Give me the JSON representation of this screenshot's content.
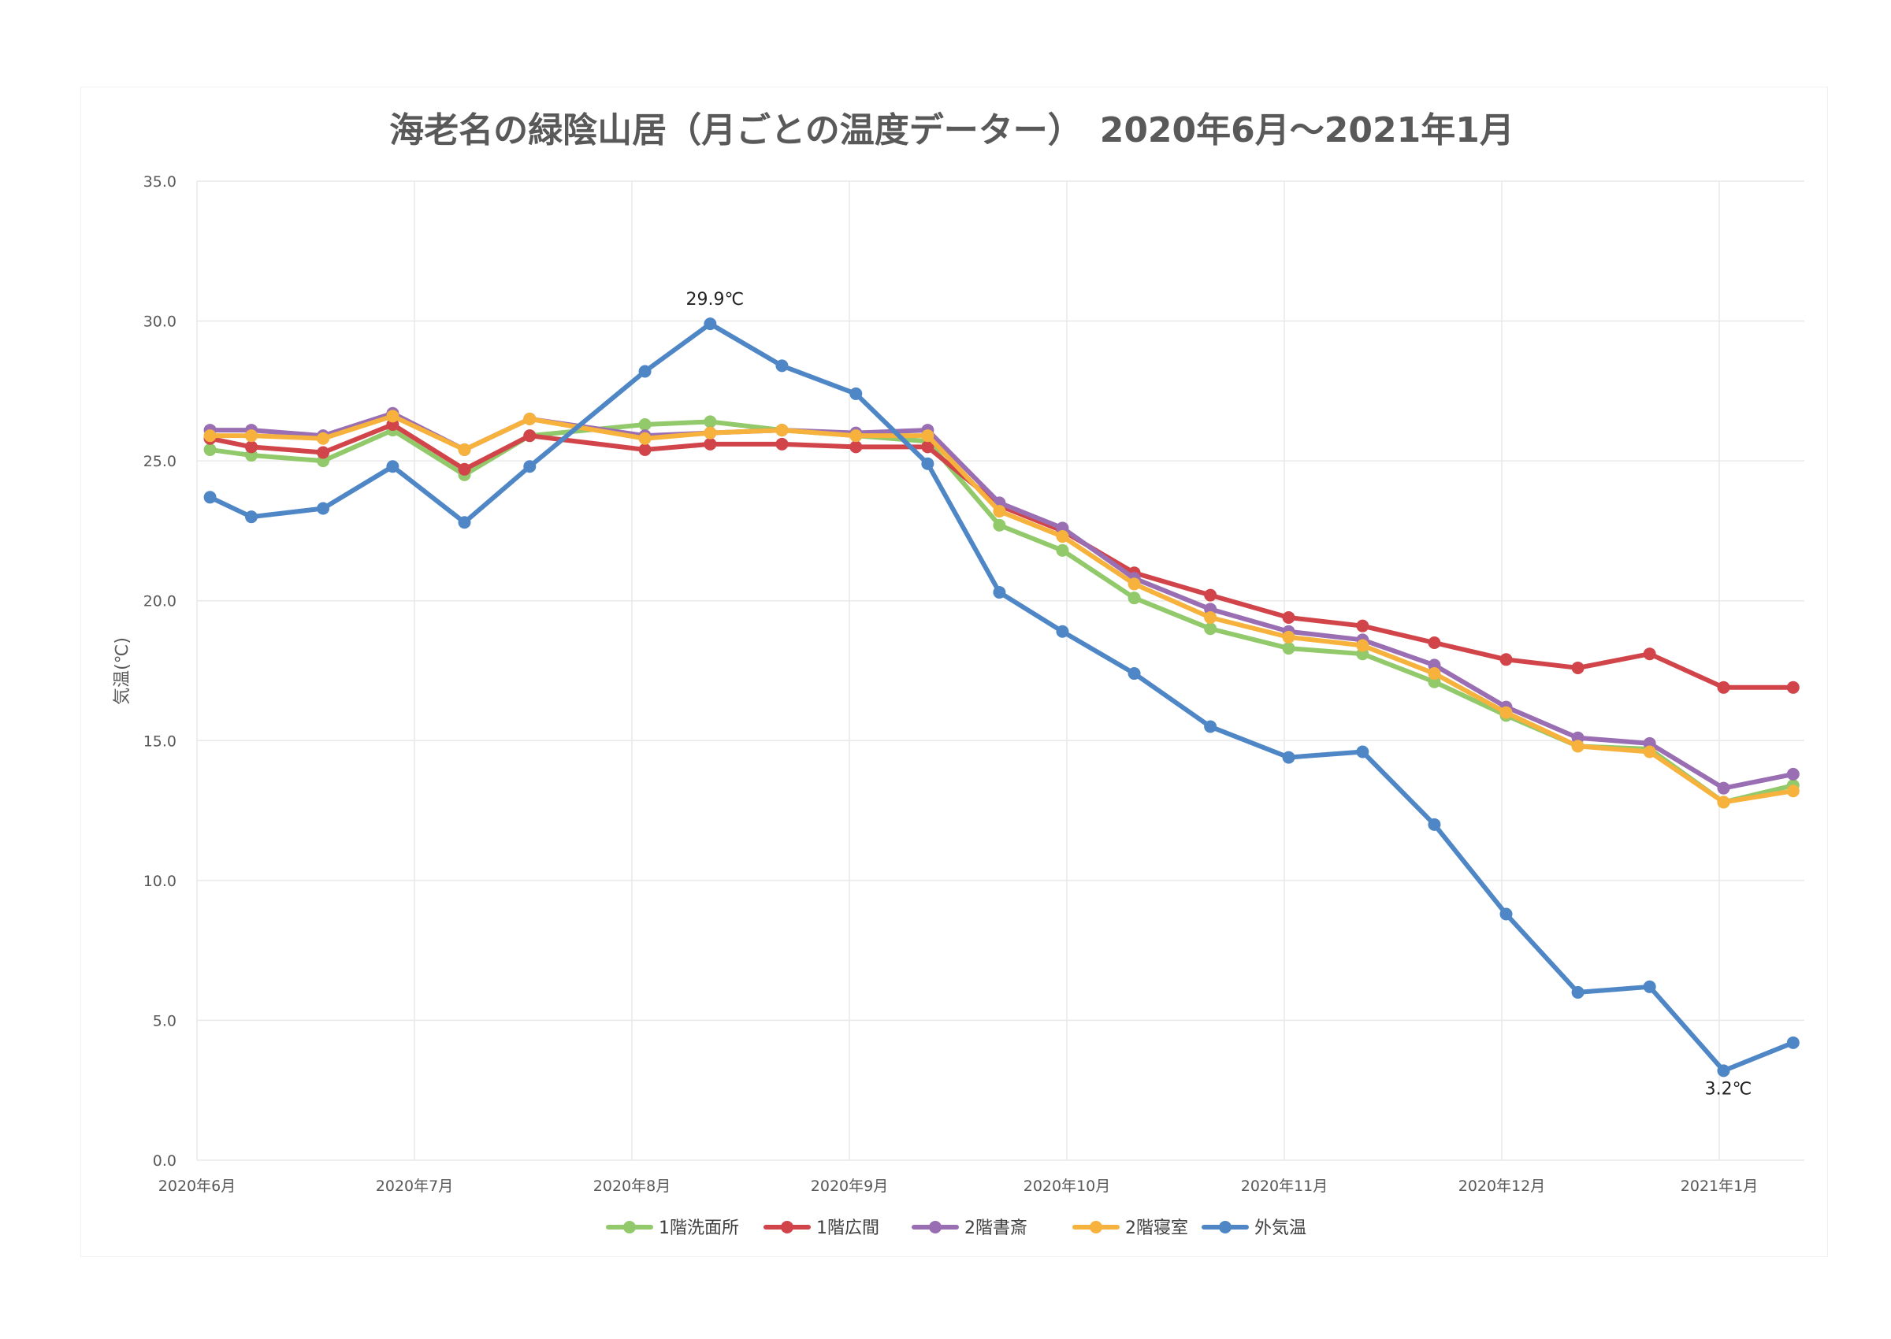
{
  "chart_data": {
    "type": "line",
    "title": "海老名の緑陰山居（月ごとの温度データー）　2020年6月～2021年1月",
    "xlabel": "",
    "ylabel": "気温(℃)",
    "ylim": [
      0,
      35
    ],
    "yticks": [
      "0.0",
      "5.0",
      "10.0",
      "15.0",
      "20.0",
      "25.0",
      "30.0",
      "35.0"
    ],
    "grid": true,
    "legend_position": "bottom",
    "x_tick_labels": [
      "2020年6月",
      "2020年7月",
      "2020年8月",
      "2020年9月",
      "2020年10月",
      "2020年11月",
      "2020年12月",
      "2021年1月"
    ],
    "x_tick_positions": [
      0,
      1,
      2,
      3,
      4,
      5,
      6,
      7
    ],
    "x": [
      0.06,
      0.25,
      0.58,
      0.9,
      1.23,
      1.53,
      2.06,
      2.36,
      2.69,
      3.03,
      3.36,
      3.69,
      3.98,
      4.31,
      4.66,
      5.02,
      5.36,
      5.69,
      6.02,
      6.35,
      6.68,
      7.02,
      7.34
    ],
    "series": [
      {
        "name": "1階洗面所",
        "color": "#92c96a",
        "values": [
          25.4,
          25.2,
          25.0,
          26.1,
          24.5,
          25.9,
          26.3,
          26.4,
          26.1,
          25.9,
          25.7,
          22.7,
          21.8,
          20.1,
          19.0,
          18.3,
          18.1,
          17.1,
          15.9,
          14.8,
          14.7,
          12.8,
          13.4
        ]
      },
      {
        "name": "1階広間",
        "color": "#d1454a",
        "values": [
          25.8,
          25.5,
          25.3,
          26.3,
          24.7,
          25.9,
          25.4,
          25.6,
          25.6,
          25.5,
          25.5,
          23.4,
          22.5,
          21.0,
          20.2,
          19.4,
          19.1,
          18.5,
          17.9,
          17.6,
          18.1,
          16.9,
          16.9
        ]
      },
      {
        "name": "2階書斎",
        "color": "#9a6eb3",
        "values": [
          26.1,
          26.1,
          25.9,
          26.7,
          25.4,
          26.5,
          25.9,
          26.0,
          26.1,
          26.0,
          26.1,
          23.5,
          22.6,
          20.8,
          19.7,
          18.9,
          18.6,
          17.7,
          16.2,
          15.1,
          14.9,
          13.3,
          13.8
        ]
      },
      {
        "name": "2階寝室",
        "color": "#f6b23c",
        "values": [
          25.9,
          25.9,
          25.8,
          26.6,
          25.4,
          26.5,
          25.8,
          26.0,
          26.1,
          25.9,
          25.9,
          23.2,
          22.3,
          20.6,
          19.4,
          18.7,
          18.4,
          17.4,
          16.0,
          14.8,
          14.6,
          12.8,
          13.2
        ]
      },
      {
        "name": "外気温",
        "color": "#4f87c6",
        "values": [
          23.7,
          23.0,
          23.3,
          24.8,
          22.8,
          24.8,
          28.2,
          29.9,
          28.4,
          27.4,
          24.9,
          20.3,
          18.9,
          17.4,
          15.5,
          14.4,
          14.6,
          12.0,
          8.8,
          6.0,
          6.2,
          3.2,
          4.2
        ]
      }
    ],
    "annotations": [
      {
        "text": "29.9℃",
        "series": "外気温",
        "index": 7,
        "placement": "above"
      },
      {
        "text": "3.2℃",
        "series": "外気温",
        "index": 21,
        "placement": "below"
      }
    ]
  }
}
